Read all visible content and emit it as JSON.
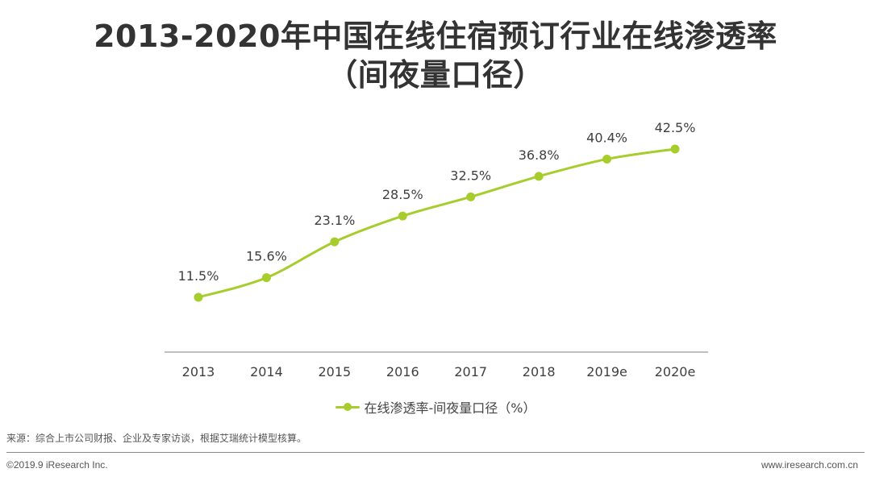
{
  "title": {
    "line1": "2013-2020年中国在线住宿预订行业在线渗透率",
    "line2": "（间夜量口径）"
  },
  "colors": {
    "series": "#a6cd2c",
    "axis": "#999999",
    "title": "#333333",
    "label": "#404040"
  },
  "chart_data": {
    "type": "line",
    "title": "2013-2020年中国在线住宿预订行业在线渗透率（间夜量口径）",
    "categories": [
      "2013",
      "2014",
      "2015",
      "2016",
      "2017",
      "2018",
      "2019e",
      "2020e"
    ],
    "series": [
      {
        "name": "在线渗透率-间夜量口径（%）",
        "values": [
          11.5,
          15.6,
          23.1,
          28.5,
          32.5,
          36.8,
          40.4,
          42.5
        ],
        "labels": [
          "11.5%",
          "15.6%",
          "23.1%",
          "28.5%",
          "32.5%",
          "36.8%",
          "40.4%",
          "42.5%"
        ]
      }
    ],
    "xlabel": "",
    "ylabel": "",
    "ylim": [
      0,
      50
    ],
    "grid": false,
    "legend": "bottom-center",
    "smooth": true
  },
  "legend": {
    "label": "在线渗透率-间夜量口径（%）"
  },
  "footer": {
    "source": "来源：综合上市公司财报、企业及专家访谈，根据艾瑞统计模型核算。",
    "copyright": "©2019.9 iResearch Inc.",
    "website": "www.iresearch.com.cn"
  }
}
